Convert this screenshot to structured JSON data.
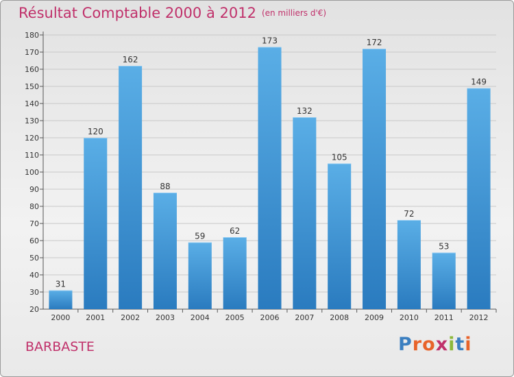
{
  "header": {
    "title": "Résultat Comptable 2000 à 2012",
    "subtitle": "(en milliers d'€)"
  },
  "footer": {
    "place": "BARBASTE",
    "logo_text": "Proxiti"
  },
  "colors": {
    "accent": "#c0306a",
    "bar_top": "#5aaee6",
    "bar_bottom": "#2a7bbf",
    "logo": [
      "#3b7fc0",
      "#e8632a",
      "#e8632a",
      "#c0306a",
      "#8cb83a",
      "#3b7fc0",
      "#e8632a"
    ]
  },
  "chart_data": {
    "type": "bar",
    "title": "Résultat Comptable 2000 à 2012",
    "subtitle": "(en milliers d'€)",
    "categories": [
      "2000",
      "2001",
      "2002",
      "2003",
      "2004",
      "2005",
      "2006",
      "2007",
      "2008",
      "2009",
      "2010",
      "2011",
      "2012"
    ],
    "values": [
      31,
      120,
      162,
      88,
      59,
      62,
      173,
      132,
      105,
      172,
      72,
      53,
      149
    ],
    "ylim": [
      20,
      180
    ],
    "yticks": [
      20,
      30,
      40,
      50,
      60,
      70,
      80,
      90,
      100,
      110,
      120,
      130,
      140,
      150,
      160,
      170,
      180
    ],
    "grid": true,
    "legend": "none"
  }
}
